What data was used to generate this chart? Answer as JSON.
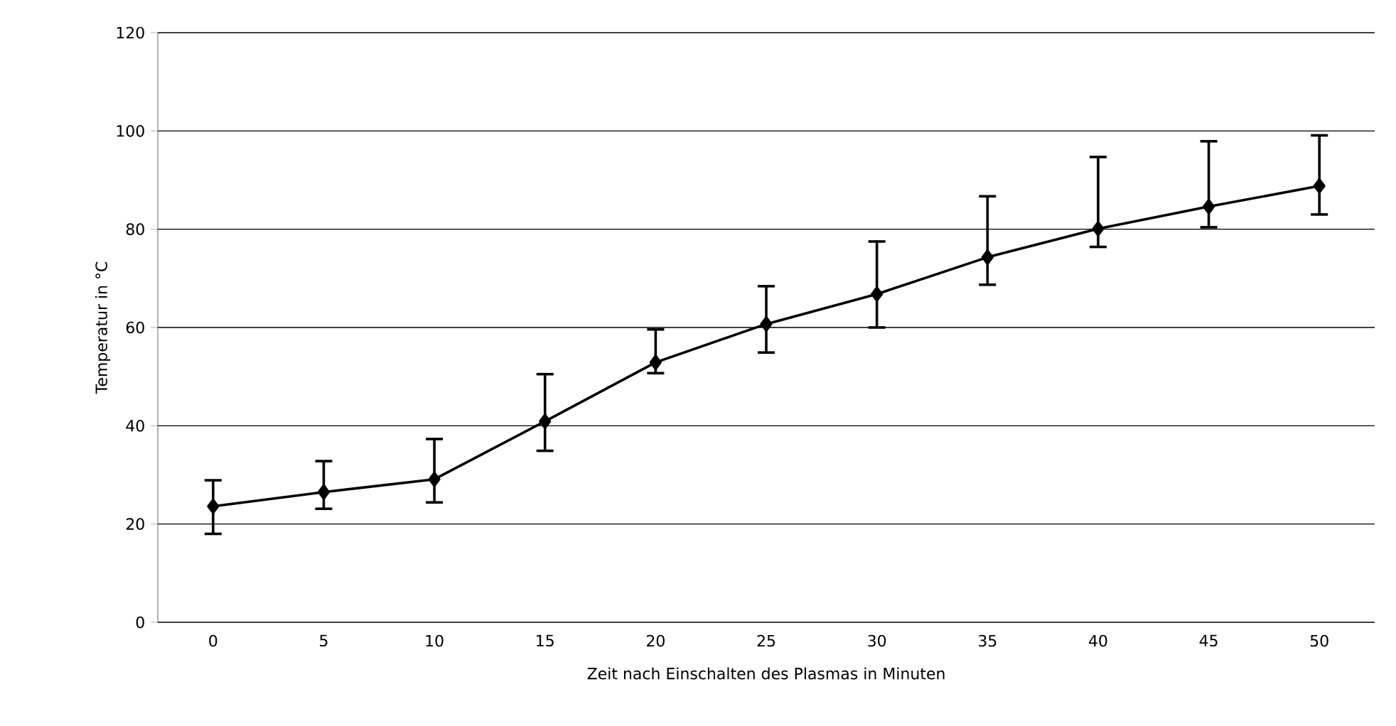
{
  "chart_data": {
    "type": "line",
    "xlabel": "Zeit nach Einschalten des Plasmas in Minuten",
    "ylabel": "Temperatur in °C",
    "categories": [
      "0",
      "5",
      "10",
      "15",
      "20",
      "25",
      "30",
      "35",
      "40",
      "45",
      "50"
    ],
    "values": [
      23.6,
      26.5,
      29.1,
      40.9,
      52.9,
      60.7,
      66.8,
      74.3,
      80.1,
      84.6,
      88.8
    ],
    "errors": [
      [
        18.0,
        28.9
      ],
      [
        23.1,
        32.8
      ],
      [
        24.4,
        37.3
      ],
      [
        34.9,
        50.5
      ],
      [
        50.7,
        59.6
      ],
      [
        54.9,
        68.4
      ],
      [
        60.0,
        77.5
      ],
      [
        68.7,
        86.7
      ],
      [
        76.4,
        94.7
      ],
      [
        80.4,
        97.9
      ],
      [
        83.0,
        99.1
      ]
    ],
    "color": "#000000",
    "marker": "diamond",
    "line_style": "solid",
    "ylim": [
      0,
      120
    ],
    "yticks": [
      0,
      20,
      40,
      60,
      80,
      100,
      120
    ],
    "grid": "y"
  }
}
